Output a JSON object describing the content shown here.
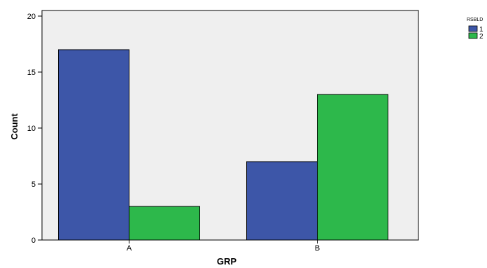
{
  "chart_data": {
    "type": "bar",
    "title": "",
    "xlabel": "GRP",
    "ylabel": "Count",
    "categories": [
      "A",
      "B"
    ],
    "ylim": [
      0,
      20.5
    ],
    "yticks": [
      0,
      5,
      10,
      15,
      20
    ],
    "grid": false,
    "legend": {
      "title": "RSBLD",
      "placement": "top-right"
    },
    "series": [
      {
        "name": "1",
        "color": "#3d56a8",
        "values": [
          17,
          7
        ]
      },
      {
        "name": "2",
        "color": "#2db84b",
        "values": [
          3,
          13
        ]
      }
    ],
    "plot_background": "#efefef"
  }
}
